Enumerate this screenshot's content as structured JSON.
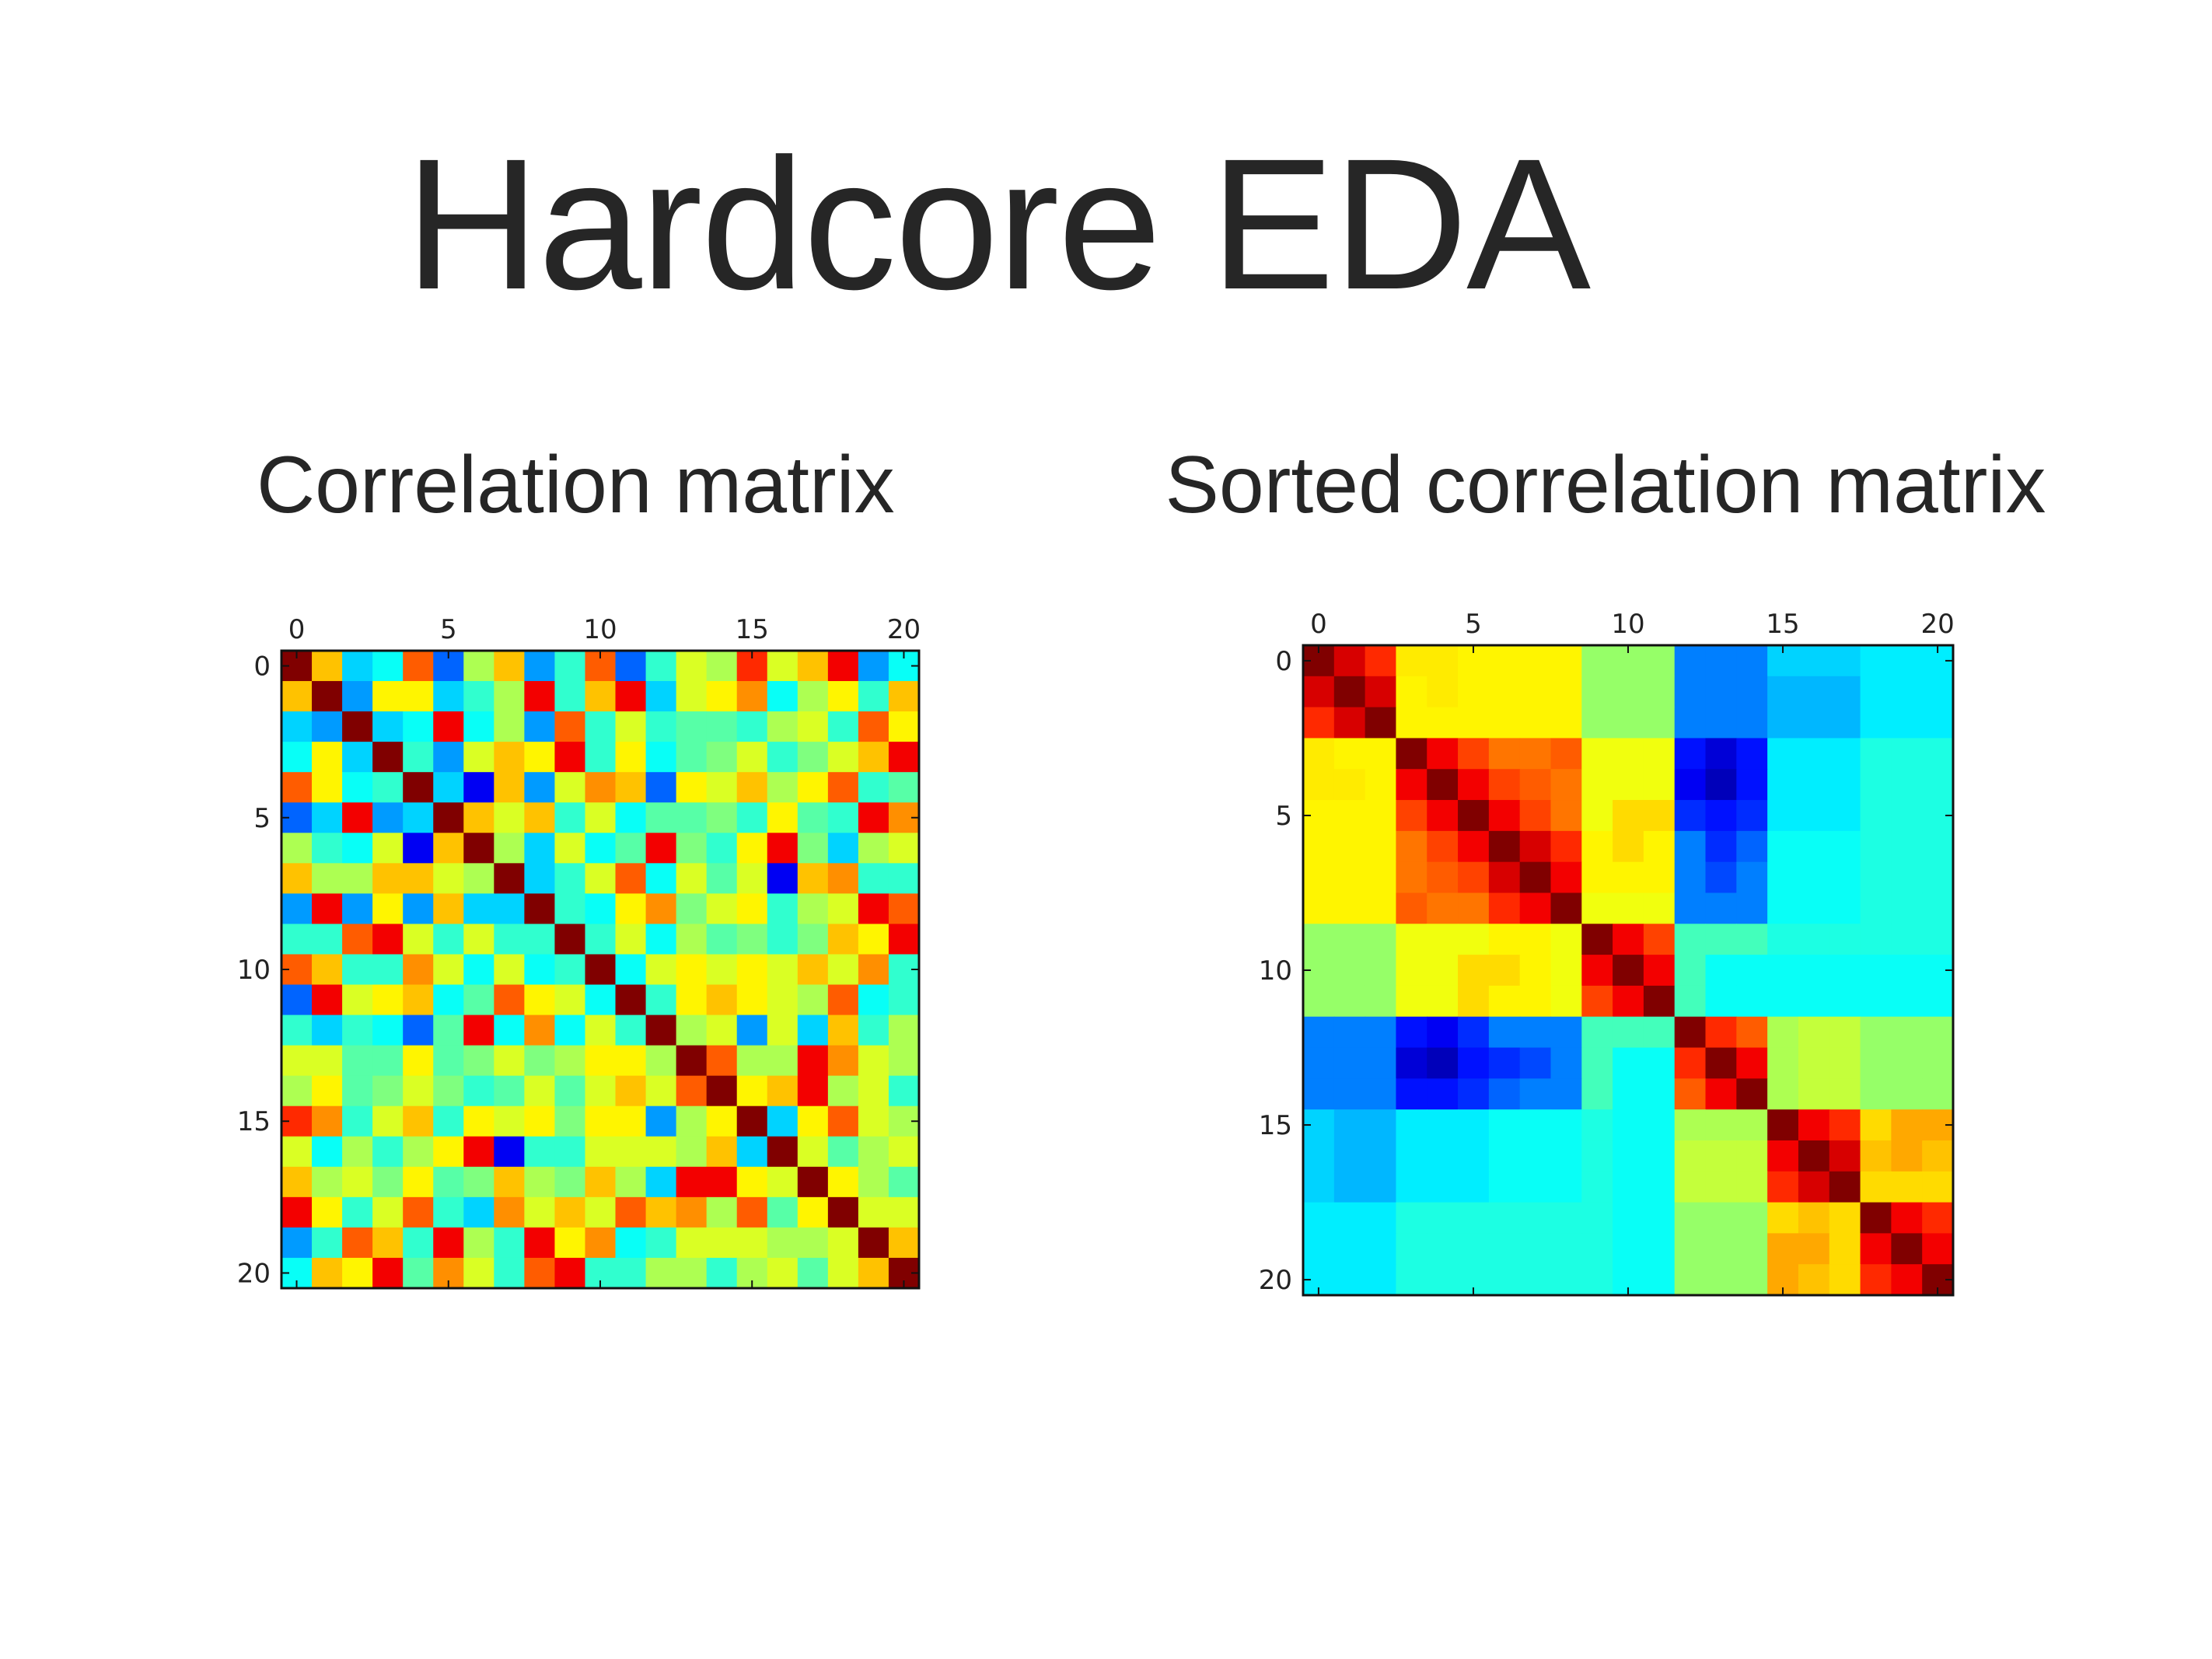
{
  "slide": {
    "title": "Hardcore EDA"
  },
  "colors": {
    "colormap": "jet",
    "jet_stops": [
      "#000080",
      "#0000ff",
      "#00ffff",
      "#7fff7f",
      "#ffff00",
      "#ff0000",
      "#800000"
    ]
  },
  "chart_data": [
    {
      "type": "heatmap",
      "title": "Correlation matrix",
      "xlabel": "",
      "ylabel": "",
      "xticks": [
        0,
        5,
        10,
        15,
        20
      ],
      "yticks": [
        0,
        5,
        10,
        15,
        20
      ],
      "x_tick_position": "top",
      "xlim": [
        -0.5,
        20.5
      ],
      "ylim": [
        20.5,
        -0.5
      ],
      "grid": false,
      "colorbar": false,
      "vmin": -1,
      "vmax": 1,
      "values": [
        [
          1,
          0.4,
          -0.4,
          -0.3,
          0.6,
          -0.6,
          0.1,
          0.4,
          -0.5,
          -0.2,
          0.6,
          -0.6,
          -0.2,
          0.2,
          0.1,
          0.7,
          0.2,
          0.4,
          0.8,
          -0.5,
          -0.3
        ],
        [
          0.4,
          1,
          -0.5,
          0.3,
          0.3,
          -0.4,
          -0.2,
          0.1,
          0.8,
          -0.2,
          0.4,
          0.8,
          -0.4,
          0.2,
          0.3,
          0.5,
          -0.3,
          0.1,
          0.3,
          -0.2,
          0.4
        ],
        [
          -0.4,
          -0.5,
          1,
          -0.4,
          -0.3,
          0.8,
          -0.3,
          0.1,
          -0.5,
          0.6,
          -0.2,
          0.2,
          -0.2,
          -0.1,
          -0.1,
          -0.2,
          0.1,
          0.2,
          -0.2,
          0.6,
          0.3
        ],
        [
          -0.3,
          0.3,
          -0.4,
          1,
          -0.2,
          -0.5,
          0.2,
          0.4,
          0.3,
          0.8,
          -0.2,
          0.3,
          -0.3,
          -0.1,
          0,
          0.2,
          -0.2,
          0,
          0.2,
          0.4,
          0.8
        ],
        [
          0.6,
          0.3,
          -0.3,
          -0.2,
          1,
          -0.4,
          -0.8,
          0.4,
          -0.5,
          0.2,
          0.5,
          0.4,
          -0.6,
          0.3,
          0.2,
          0.4,
          0.1,
          0.3,
          0.6,
          -0.2,
          -0.1
        ],
        [
          -0.6,
          -0.4,
          0.8,
          -0.5,
          -0.4,
          1,
          0.4,
          0.2,
          0.4,
          -0.2,
          0.2,
          -0.3,
          -0.1,
          -0.1,
          0,
          -0.2,
          0.3,
          -0.1,
          -0.2,
          0.8,
          0.5
        ],
        [
          0.1,
          -0.2,
          -0.3,
          0.2,
          -0.8,
          0.4,
          1,
          0.1,
          -0.4,
          0.2,
          -0.3,
          -0.1,
          0.8,
          0,
          -0.2,
          0.3,
          0.8,
          0,
          -0.4,
          0.1,
          0.2
        ],
        [
          0.4,
          0.1,
          0.1,
          0.4,
          0.4,
          0.2,
          0.1,
          1,
          -0.4,
          -0.2,
          0.2,
          0.6,
          -0.3,
          0.2,
          -0.1,
          0.2,
          -0.8,
          0.4,
          0.5,
          -0.2,
          -0.2
        ],
        [
          -0.5,
          0.8,
          -0.5,
          0.3,
          -0.5,
          0.4,
          -0.4,
          -0.4,
          1,
          -0.2,
          -0.3,
          0.3,
          0.5,
          0,
          0.2,
          0.3,
          -0.2,
          0.1,
          0.2,
          0.8,
          0.6
        ],
        [
          -0.2,
          -0.2,
          0.6,
          0.8,
          0.2,
          -0.2,
          0.2,
          -0.2,
          -0.2,
          1,
          -0.2,
          0.2,
          -0.3,
          0.1,
          -0.1,
          0,
          -0.2,
          0,
          0.4,
          0.3,
          0.8
        ],
        [
          0.6,
          0.4,
          -0.2,
          -0.2,
          0.5,
          0.2,
          -0.3,
          0.2,
          -0.3,
          -0.2,
          1,
          -0.3,
          0.2,
          0.3,
          0.2,
          0.3,
          0.2,
          0.4,
          0.2,
          0.5,
          -0.2
        ],
        [
          -0.6,
          0.8,
          0.2,
          0.3,
          0.4,
          -0.3,
          -0.1,
          0.6,
          0.3,
          0.2,
          -0.3,
          1,
          -0.2,
          0.3,
          0.4,
          0.3,
          0.2,
          0.1,
          0.6,
          -0.3,
          -0.2
        ],
        [
          -0.2,
          -0.4,
          -0.2,
          -0.3,
          -0.6,
          -0.1,
          0.8,
          -0.3,
          0.5,
          -0.3,
          0.2,
          -0.2,
          1,
          0.1,
          0.2,
          -0.5,
          0.2,
          -0.4,
          0.4,
          -0.2,
          0.1
        ],
        [
          0.2,
          0.2,
          -0.1,
          -0.1,
          0.3,
          -0.1,
          0,
          0.2,
          0,
          0.1,
          0.3,
          0.3,
          0.1,
          1,
          0.6,
          0.1,
          0.1,
          0.8,
          0.5,
          0.2,
          0.1
        ],
        [
          0.1,
          0.3,
          -0.1,
          0,
          0.2,
          0,
          -0.2,
          -0.1,
          0.2,
          -0.1,
          0.2,
          0.4,
          0.2,
          0.6,
          1,
          0.3,
          0.4,
          0.8,
          0.1,
          0.2,
          -0.2
        ],
        [
          0.7,
          0.5,
          -0.2,
          0.2,
          0.4,
          -0.2,
          0.3,
          0.2,
          0.3,
          0,
          0.3,
          0.3,
          -0.5,
          0.1,
          0.3,
          1,
          -0.4,
          0.3,
          0.6,
          0.2,
          0.1
        ],
        [
          0.2,
          -0.3,
          0.1,
          -0.2,
          0.1,
          0.3,
          0.8,
          -0.8,
          -0.2,
          -0.2,
          0.2,
          0.2,
          0.2,
          0.1,
          0.4,
          -0.4,
          1,
          0.2,
          -0.1,
          0.1,
          0.2
        ],
        [
          0.4,
          0.1,
          0.2,
          0,
          0.3,
          -0.1,
          0,
          0.4,
          0.1,
          0,
          0.4,
          0.1,
          -0.4,
          0.8,
          0.8,
          0.3,
          0.2,
          1,
          0.3,
          0.1,
          -0.1
        ],
        [
          0.8,
          0.3,
          -0.2,
          0.2,
          0.6,
          -0.2,
          -0.4,
          0.5,
          0.2,
          0.4,
          0.2,
          0.6,
          0.4,
          0.5,
          0.1,
          0.6,
          -0.1,
          0.3,
          1,
          0.2,
          0.2
        ],
        [
          -0.5,
          -0.2,
          0.6,
          0.4,
          -0.2,
          0.8,
          0.1,
          -0.2,
          0.8,
          0.3,
          0.5,
          -0.3,
          -0.2,
          0.2,
          0.2,
          0.2,
          0.1,
          0.1,
          0.2,
          1,
          0.4
        ],
        [
          -0.3,
          0.4,
          0.3,
          0.8,
          -0.1,
          0.5,
          0.2,
          -0.2,
          0.6,
          0.8,
          -0.2,
          -0.2,
          0.1,
          0.1,
          -0.2,
          0.1,
          0.2,
          -0.1,
          0.2,
          0.4,
          1
        ]
      ]
    },
    {
      "type": "heatmap",
      "title": "Sorted correlation matrix",
      "xlabel": "",
      "ylabel": "",
      "xticks": [
        0,
        5,
        10,
        15,
        20
      ],
      "yticks": [
        0,
        5,
        10,
        15,
        20
      ],
      "x_tick_position": "top",
      "xlim": [
        -0.5,
        20.5
      ],
      "ylim": [
        20.5,
        -0.5
      ],
      "grid": false,
      "colorbar": false,
      "vmin": -1,
      "vmax": 1,
      "values": [
        [
          1,
          0.85,
          0.7,
          0.32,
          0.32,
          0.3,
          0.3,
          0.3,
          0.3,
          0.05,
          0.05,
          0.05,
          -0.55,
          -0.55,
          -0.55,
          -0.4,
          -0.4,
          -0.4,
          -0.35,
          -0.35,
          -0.35
        ],
        [
          0.85,
          1,
          0.85,
          0.3,
          0.32,
          0.3,
          0.3,
          0.3,
          0.3,
          0.05,
          0.05,
          0.05,
          -0.55,
          -0.55,
          -0.55,
          -0.45,
          -0.45,
          -0.45,
          -0.35,
          -0.35,
          -0.35
        ],
        [
          0.7,
          0.85,
          1,
          0.3,
          0.3,
          0.3,
          0.3,
          0.3,
          0.3,
          0.05,
          0.05,
          0.05,
          -0.55,
          -0.55,
          -0.55,
          -0.45,
          -0.45,
          -0.45,
          -0.35,
          -0.35,
          -0.35
        ],
        [
          0.32,
          0.3,
          0.3,
          1,
          0.8,
          0.65,
          0.55,
          0.55,
          0.6,
          0.25,
          0.25,
          0.25,
          -0.75,
          -0.85,
          -0.75,
          -0.35,
          -0.35,
          -0.35,
          -0.25,
          -0.25,
          -0.25
        ],
        [
          0.32,
          0.32,
          0.3,
          0.8,
          1,
          0.8,
          0.65,
          0.6,
          0.55,
          0.25,
          0.25,
          0.25,
          -0.8,
          -0.9,
          -0.75,
          -0.35,
          -0.35,
          -0.35,
          -0.25,
          -0.25,
          -0.25
        ],
        [
          0.3,
          0.3,
          0.3,
          0.65,
          0.8,
          1,
          0.8,
          0.65,
          0.55,
          0.25,
          0.35,
          0.35,
          -0.7,
          -0.75,
          -0.7,
          -0.35,
          -0.35,
          -0.35,
          -0.25,
          -0.25,
          -0.25
        ],
        [
          0.3,
          0.3,
          0.3,
          0.55,
          0.65,
          0.8,
          1,
          0.85,
          0.7,
          0.3,
          0.35,
          0.3,
          -0.55,
          -0.7,
          -0.6,
          -0.3,
          -0.3,
          -0.3,
          -0.25,
          -0.25,
          -0.25
        ],
        [
          0.3,
          0.3,
          0.3,
          0.55,
          0.6,
          0.65,
          0.85,
          1,
          0.8,
          0.3,
          0.3,
          0.3,
          -0.55,
          -0.65,
          -0.55,
          -0.3,
          -0.3,
          -0.3,
          -0.25,
          -0.25,
          -0.25
        ],
        [
          0.3,
          0.3,
          0.3,
          0.6,
          0.55,
          0.55,
          0.7,
          0.8,
          1,
          0.25,
          0.25,
          0.25,
          -0.55,
          -0.55,
          -0.55,
          -0.3,
          -0.3,
          -0.3,
          -0.25,
          -0.25,
          -0.25
        ],
        [
          0.05,
          0.05,
          0.05,
          0.25,
          0.25,
          0.25,
          0.3,
          0.3,
          0.25,
          1,
          0.8,
          0.65,
          -0.15,
          -0.15,
          -0.15,
          -0.25,
          -0.25,
          -0.25,
          -0.25,
          -0.25,
          -0.25
        ],
        [
          0.05,
          0.05,
          0.05,
          0.25,
          0.25,
          0.35,
          0.35,
          0.3,
          0.25,
          0.8,
          1,
          0.8,
          -0.15,
          -0.3,
          -0.3,
          -0.3,
          -0.3,
          -0.3,
          -0.3,
          -0.3,
          -0.3
        ],
        [
          0.05,
          0.05,
          0.05,
          0.25,
          0.25,
          0.35,
          0.3,
          0.3,
          0.25,
          0.65,
          0.8,
          1,
          -0.15,
          -0.3,
          -0.3,
          -0.3,
          -0.3,
          -0.3,
          -0.3,
          -0.3,
          -0.3
        ],
        [
          -0.55,
          -0.55,
          -0.55,
          -0.75,
          -0.8,
          -0.7,
          -0.55,
          -0.55,
          -0.55,
          -0.15,
          -0.15,
          -0.15,
          1,
          0.7,
          0.6,
          0.1,
          0.15,
          0.15,
          0.05,
          0.05,
          0.05
        ],
        [
          -0.55,
          -0.55,
          -0.55,
          -0.85,
          -0.9,
          -0.75,
          -0.7,
          -0.65,
          -0.55,
          -0.15,
          -0.3,
          -0.3,
          0.7,
          1,
          0.8,
          0.1,
          0.15,
          0.15,
          0.05,
          0.05,
          0.05
        ],
        [
          -0.55,
          -0.55,
          -0.55,
          -0.75,
          -0.75,
          -0.7,
          -0.6,
          -0.55,
          -0.55,
          -0.15,
          -0.3,
          -0.3,
          0.6,
          0.8,
          1,
          0.1,
          0.15,
          0.15,
          0.05,
          0.05,
          0.05
        ],
        [
          -0.4,
          -0.45,
          -0.45,
          -0.35,
          -0.35,
          -0.35,
          -0.3,
          -0.3,
          -0.3,
          -0.25,
          -0.3,
          -0.3,
          0.1,
          0.1,
          0.1,
          1,
          0.8,
          0.7,
          0.35,
          0.45,
          0.45
        ],
        [
          -0.4,
          -0.45,
          -0.45,
          -0.35,
          -0.35,
          -0.35,
          -0.3,
          -0.3,
          -0.3,
          -0.25,
          -0.3,
          -0.3,
          0.15,
          0.15,
          0.15,
          0.8,
          1,
          0.85,
          0.4,
          0.45,
          0.4
        ],
        [
          -0.4,
          -0.45,
          -0.45,
          -0.35,
          -0.35,
          -0.35,
          -0.3,
          -0.3,
          -0.3,
          -0.25,
          -0.3,
          -0.3,
          0.15,
          0.15,
          0.15,
          0.7,
          0.85,
          1,
          0.35,
          0.35,
          0.35
        ],
        [
          -0.35,
          -0.35,
          -0.35,
          -0.25,
          -0.25,
          -0.25,
          -0.25,
          -0.25,
          -0.25,
          -0.25,
          -0.3,
          -0.3,
          0.05,
          0.05,
          0.05,
          0.35,
          0.4,
          0.35,
          1,
          0.8,
          0.7
        ],
        [
          -0.35,
          -0.35,
          -0.35,
          -0.25,
          -0.25,
          -0.25,
          -0.25,
          -0.25,
          -0.25,
          -0.25,
          -0.3,
          -0.3,
          0.05,
          0.05,
          0.05,
          0.45,
          0.45,
          0.35,
          0.8,
          1,
          0.8
        ],
        [
          -0.35,
          -0.35,
          -0.35,
          -0.25,
          -0.25,
          -0.25,
          -0.25,
          -0.25,
          -0.25,
          -0.25,
          -0.3,
          -0.3,
          0.05,
          0.05,
          0.05,
          0.45,
          0.4,
          0.35,
          0.7,
          0.8,
          1
        ]
      ]
    }
  ]
}
